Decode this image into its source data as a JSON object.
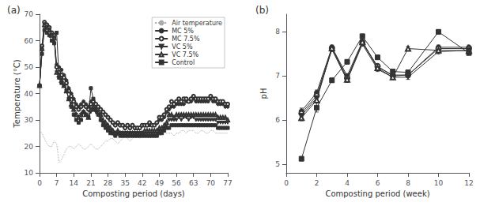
{
  "chart_data": [
    {
      "type": "line",
      "title": "(a)",
      "xlabel": "Composting period (days)",
      "ylabel": "Temperature (°C)",
      "xlim": [
        0,
        77
      ],
      "ylim": [
        10,
        70
      ],
      "xticks": [
        0,
        7,
        14,
        21,
        28,
        35,
        42,
        49,
        56,
        63,
        70,
        77
      ],
      "yticks": [
        10,
        20,
        30,
        40,
        50,
        60,
        70
      ],
      "grid": false,
      "legend": "upper right",
      "x": [
        0,
        1,
        2,
        3,
        4,
        5,
        6,
        7,
        8,
        9,
        10,
        11,
        12,
        13,
        14,
        15,
        16,
        17,
        18,
        19,
        20,
        21,
        22,
        23,
        24,
        25,
        26,
        27,
        28,
        29,
        30,
        31,
        32,
        33,
        34,
        35,
        36,
        37,
        38,
        39,
        40,
        41,
        42,
        43,
        44,
        45,
        46,
        47,
        48,
        49,
        50,
        51,
        52,
        53,
        54,
        55,
        56,
        57,
        58,
        59,
        60,
        61,
        62,
        63,
        64,
        65,
        66,
        67,
        68,
        69,
        70,
        71,
        72,
        73,
        74,
        75,
        76,
        77
      ],
      "series": [
        {
          "name": "Air temperature",
          "color": "#aaaaaa",
          "line_style": "dotted",
          "marker": "none",
          "values": [
            26,
            25,
            23,
            21,
            20,
            20,
            22,
            21,
            14,
            15,
            17,
            19,
            20,
            20,
            19,
            20,
            21,
            20,
            19,
            19,
            20,
            21,
            20,
            19,
            19,
            20,
            21,
            22,
            22,
            23,
            23,
            22,
            21,
            22,
            23,
            24,
            23,
            22,
            23,
            24,
            24,
            23,
            24,
            25,
            25,
            24,
            25,
            25,
            25,
            24,
            25,
            25,
            25,
            25,
            25,
            24,
            25,
            25,
            26,
            26,
            25,
            26,
            26,
            26,
            25,
            25,
            26,
            26,
            25,
            25,
            26,
            26,
            25,
            25,
            25,
            25,
            25,
            25
          ]
        },
        {
          "name": "MC 5%",
          "color": "#333333",
          "line_style": "solid",
          "marker": "circle",
          "values": [
            43,
            57,
            66,
            65,
            64,
            62,
            61,
            51,
            50,
            49,
            47,
            45,
            42,
            40,
            38,
            36,
            35,
            36,
            37,
            36,
            35,
            37,
            37,
            36,
            35,
            34,
            33,
            32,
            31,
            30,
            29,
            28,
            29,
            28,
            28,
            27,
            28,
            27,
            28,
            27,
            27,
            27,
            28,
            28,
            28,
            28,
            28,
            28,
            29,
            30,
            30,
            31,
            33,
            34,
            35,
            35,
            36,
            36,
            36,
            36,
            37,
            37,
            37,
            38,
            37,
            37,
            37,
            37,
            37,
            37,
            38,
            37,
            37,
            36,
            36,
            36,
            35,
            35
          ]
        },
        {
          "name": "MC 7.5%",
          "color": "#333333",
          "line_style": "solid",
          "marker": "circle-open",
          "values": [
            43,
            58,
            67,
            66,
            65,
            63,
            62,
            50,
            48,
            47,
            46,
            44,
            41,
            39,
            37,
            35,
            34,
            35,
            36,
            35,
            34,
            36,
            37,
            36,
            35,
            34,
            33,
            32,
            31,
            30,
            29,
            28,
            29,
            28,
            28,
            27,
            28,
            27,
            28,
            27,
            27,
            27,
            28,
            28,
            28,
            29,
            28,
            28,
            29,
            31,
            31,
            32,
            34,
            35,
            37,
            36,
            37,
            38,
            37,
            38,
            38,
            37,
            38,
            39,
            38,
            38,
            38,
            38,
            38,
            38,
            39,
            38,
            38,
            37,
            37,
            37,
            36,
            36
          ]
        },
        {
          "name": "VC 5%",
          "color": "#333333",
          "line_style": "solid",
          "marker": "triangle-down",
          "values": [
            43,
            56,
            66,
            65,
            64,
            62,
            61,
            48,
            46,
            44,
            43,
            41,
            38,
            36,
            34,
            32,
            31,
            32,
            33,
            32,
            31,
            33,
            34,
            33,
            32,
            31,
            29,
            28,
            27,
            26,
            25,
            25,
            25,
            25,
            25,
            25,
            25,
            25,
            25,
            25,
            25,
            25,
            25,
            25,
            25,
            25,
            25,
            25,
            25,
            26,
            26,
            27,
            28,
            30,
            30,
            30,
            30,
            31,
            30,
            31,
            31,
            30,
            31,
            31,
            30,
            30,
            30,
            30,
            30,
            30,
            30,
            30,
            30,
            29,
            29,
            29,
            29,
            29
          ]
        },
        {
          "name": "VC 7.5%",
          "color": "#333333",
          "line_style": "solid",
          "marker": "triangle-up-open",
          "values": [
            43,
            57,
            66,
            65,
            64,
            62,
            61,
            48,
            47,
            45,
            43,
            41,
            38,
            36,
            34,
            32,
            31,
            32,
            33,
            32,
            31,
            34,
            35,
            34,
            33,
            32,
            30,
            29,
            28,
            27,
            26,
            25,
            26,
            25,
            25,
            25,
            25,
            25,
            25,
            25,
            25,
            25,
            25,
            26,
            26,
            26,
            26,
            26,
            26,
            27,
            27,
            28,
            29,
            32,
            32,
            31,
            32,
            32,
            32,
            32,
            32,
            32,
            32,
            32,
            32,
            32,
            32,
            32,
            32,
            32,
            32,
            32,
            32,
            31,
            31,
            31,
            31,
            30
          ]
        },
        {
          "name": "Control",
          "color": "#333333",
          "line_style": "solid",
          "marker": "square",
          "values": [
            43,
            55,
            64,
            63,
            62,
            60,
            59,
            63,
            46,
            44,
            43,
            41,
            38,
            35,
            32,
            30,
            29,
            30,
            33,
            32,
            31,
            42,
            38,
            34,
            32,
            30,
            28,
            27,
            26,
            25,
            25,
            24,
            25,
            24,
            24,
            24,
            24,
            24,
            24,
            24,
            24,
            24,
            24,
            24,
            24,
            24,
            24,
            24,
            24,
            25,
            25,
            26,
            27,
            27,
            28,
            28,
            28,
            28,
            28,
            28,
            28,
            28,
            28,
            28,
            28,
            28,
            28,
            28,
            28,
            28,
            28,
            28,
            28,
            27,
            27,
            27,
            27,
            27
          ]
        }
      ]
    },
    {
      "type": "line",
      "title": "(b)",
      "xlabel": "Composting period (week)",
      "ylabel": "pH",
      "xlim": [
        0,
        12
      ],
      "ylim": [
        4.8,
        8.4
      ],
      "xticks": [
        0,
        2,
        4,
        6,
        8,
        10,
        12
      ],
      "yticks": [
        5,
        6,
        7,
        8
      ],
      "grid": false,
      "x": [
        1,
        2,
        3,
        4,
        5,
        6,
        7,
        8,
        10,
        12
      ],
      "series": [
        {
          "name": "MC 5%",
          "color": "#333333",
          "line_style": "solid",
          "marker": "circle",
          "values": [
            6.2,
            6.62,
            7.65,
            7.0,
            7.78,
            7.2,
            7.02,
            7.02,
            7.65,
            7.65
          ],
          "errors": [
            0.07,
            0.06,
            0.05,
            0.05,
            0.04,
            0.05,
            0.05,
            0.05,
            0.05,
            0.05
          ]
        },
        {
          "name": "MC 7.5%",
          "color": "#333333",
          "line_style": "solid",
          "marker": "circle-open",
          "values": [
            6.15,
            6.55,
            7.63,
            6.95,
            7.75,
            7.22,
            7.0,
            7.02,
            7.62,
            7.62
          ],
          "errors": [
            0.07,
            0.06,
            0.05,
            0.05,
            0.04,
            0.05,
            0.05,
            0.05,
            0.05,
            0.05
          ]
        },
        {
          "name": "VC 5%",
          "color": "#333333",
          "line_style": "solid",
          "marker": "triangle-down",
          "values": [
            6.1,
            6.5,
            7.6,
            6.9,
            7.72,
            7.15,
            6.97,
            6.97,
            7.55,
            7.58
          ],
          "errors": [
            0.07,
            0.06,
            0.05,
            0.05,
            0.04,
            0.05,
            0.05,
            0.05,
            0.05,
            0.05
          ]
        },
        {
          "name": "VC 7.5%",
          "color": "#333333",
          "line_style": "solid",
          "marker": "triangle-up-open",
          "values": [
            6.05,
            6.45,
            7.63,
            6.92,
            7.77,
            7.18,
            6.97,
            7.62,
            7.58,
            7.57
          ],
          "errors": [
            0.07,
            0.06,
            0.05,
            0.05,
            0.04,
            0.05,
            0.05,
            0.05,
            0.05,
            0.05
          ]
        },
        {
          "name": "Control",
          "color": "#333333",
          "line_style": "solid",
          "marker": "square",
          "values": [
            5.12,
            6.28,
            6.9,
            7.32,
            7.9,
            7.42,
            7.1,
            7.08,
            8.0,
            7.52
          ],
          "errors": [
            0.05,
            0.1,
            0.05,
            0.05,
            0.05,
            0.05,
            0.05,
            0.05,
            0.05,
            0.05
          ]
        }
      ]
    }
  ]
}
